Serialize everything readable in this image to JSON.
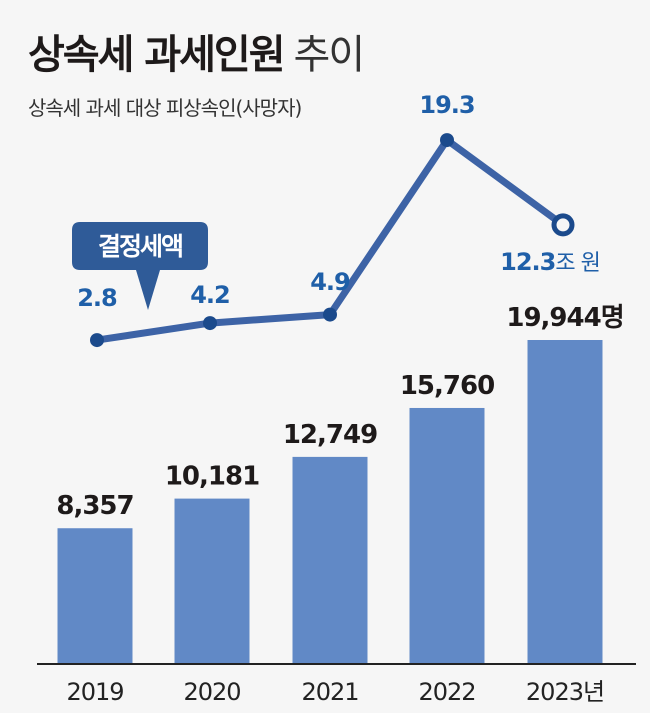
{
  "title": {
    "bold": "상속세 과세인원",
    "light": "추이"
  },
  "subtitle": "상속세 과세 대상 피상속인(사망자)",
  "chart_data": [
    {
      "type": "bar",
      "categories": [
        "2019",
        "2020",
        "2021",
        "2022",
        "2023"
      ],
      "category_labels": [
        "2019",
        "2020",
        "2021",
        "2022",
        "2023년"
      ],
      "values": [
        8357,
        10181,
        12749,
        15760,
        19944
      ],
      "value_labels": [
        "8,357",
        "10,181",
        "12,749",
        "15,760",
        "19,944명"
      ],
      "unit": "명",
      "ylim": [
        0,
        20000
      ],
      "color": "#6189c6"
    },
    {
      "type": "line",
      "name": "결정세액",
      "callout": "결정세액",
      "categories": [
        "2019",
        "2020",
        "2021",
        "2022",
        "2023"
      ],
      "values": [
        2.8,
        4.2,
        4.9,
        19.3,
        12.3
      ],
      "value_labels": [
        "2.8",
        "4.2",
        "4.9",
        "19.3",
        "12.3"
      ],
      "last_unit": "조 원",
      "unit": "조 원",
      "color": "#3d63a6",
      "marker_color": "#1b4a8c",
      "label_color": "#1f5fa8"
    }
  ]
}
